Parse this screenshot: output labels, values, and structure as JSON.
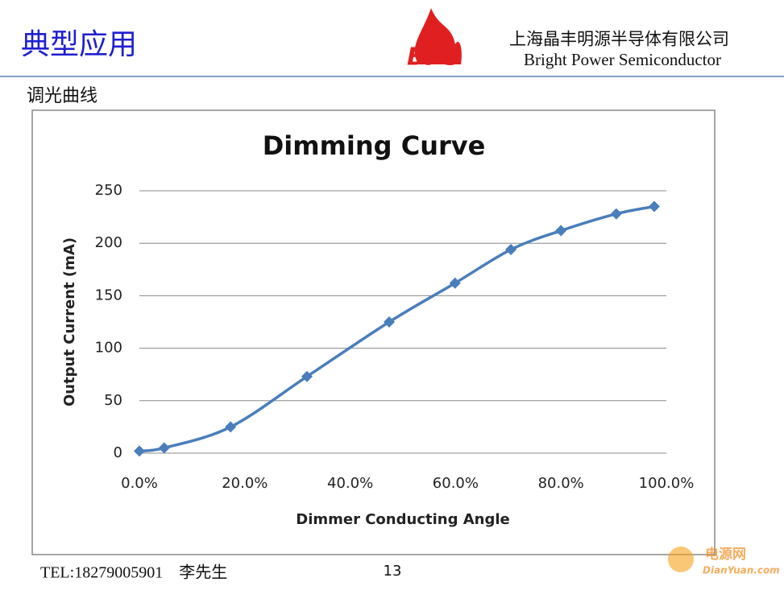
{
  "header": {
    "title": "典型应用",
    "company_cn": "上海晶丰明源半导体有限公司",
    "company_en": "Bright Power Semiconductor",
    "logo": "BPS"
  },
  "section": "调光曲线",
  "chart_data": {
    "type": "line",
    "title": "Dimming Curve",
    "x_label": "Dimmer Conducting Angle",
    "y_label": "Output Current  (mA)",
    "x": [
      0,
      4.7,
      17.3,
      31.8,
      47.4,
      59.9,
      70.5,
      80.0,
      90.5,
      97.7
    ],
    "values": [
      2,
      5,
      25,
      73,
      125,
      162,
      194,
      212,
      228,
      235
    ],
    "color": "#4a7ebb",
    "xlim": [
      0,
      100
    ],
    "xticks": [
      {
        "value": 0,
        "label": "0.0%"
      },
      {
        "value": 20,
        "label": "20.0%"
      },
      {
        "value": 40,
        "label": "40.0%"
      },
      {
        "value": 60,
        "label": "60.0%"
      },
      {
        "value": 80,
        "label": "80.0%"
      },
      {
        "value": 100,
        "label": "100.0%"
      }
    ],
    "ylim": [
      0,
      250
    ],
    "yticks": [
      0,
      50,
      100,
      150,
      200,
      250
    ],
    "grid": true
  },
  "footer": {
    "contact": "TEL:18279005901　李先生",
    "page": "13"
  },
  "watermark": {
    "name": "电源网",
    "site": "DianYuan.com"
  }
}
